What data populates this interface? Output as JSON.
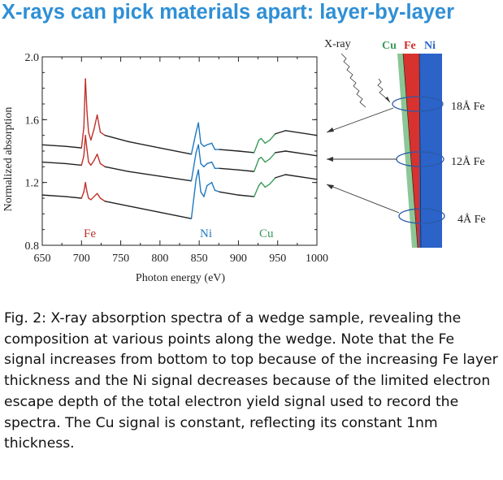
{
  "header": {
    "title": "X-rays can pick materials apart: layer-by-layer"
  },
  "chart_data": {
    "type": "line",
    "xlabel": "Photon energy (eV)",
    "ylabel": "Normalized absorption",
    "xlim": [
      650,
      1000
    ],
    "ylim": [
      0.8,
      2.0
    ],
    "xticks": [
      "650",
      "700",
      "750",
      "800",
      "850",
      "900",
      "950",
      "1000"
    ],
    "yticks": [
      "0.8",
      "1.2",
      "1.6",
      "2.0"
    ],
    "grid": false,
    "edge_labels": [
      {
        "text": "Fe",
        "color": "#c0302a"
      },
      {
        "text": "Ni",
        "color": "#1f78c0"
      },
      {
        "text": "Cu",
        "color": "#3a9a5a"
      }
    ],
    "region_colors": {
      "fe": "#c0302a",
      "ni": "#1f78c0",
      "cu": "#3a9a5a",
      "baseline": "#222222"
    },
    "series": [
      {
        "thickness": "18Å Fe",
        "x": [
          650,
          680,
          700,
          703,
          705,
          707,
          709,
          712,
          716,
          720,
          724,
          730,
          760,
          800,
          840,
          846,
          849,
          852,
          856,
          860,
          866,
          870,
          876,
          900,
          920,
          926,
          929,
          934,
          940,
          947,
          960,
          1000
        ],
        "y": [
          1.44,
          1.43,
          1.42,
          1.55,
          1.86,
          1.65,
          1.52,
          1.47,
          1.54,
          1.63,
          1.52,
          1.5,
          1.46,
          1.42,
          1.38,
          1.52,
          1.58,
          1.45,
          1.43,
          1.44,
          1.45,
          1.41,
          1.41,
          1.4,
          1.39,
          1.47,
          1.48,
          1.45,
          1.47,
          1.51,
          1.53,
          1.5
        ]
      },
      {
        "thickness": "12Å Fe",
        "x": [
          650,
          680,
          700,
          703,
          705,
          707,
          709,
          712,
          716,
          720,
          724,
          730,
          760,
          800,
          840,
          846,
          849,
          852,
          856,
          860,
          866,
          870,
          876,
          900,
          920,
          926,
          929,
          934,
          940,
          947,
          960,
          1000
        ],
        "y": [
          1.33,
          1.32,
          1.31,
          1.37,
          1.5,
          1.41,
          1.33,
          1.31,
          1.34,
          1.38,
          1.32,
          1.3,
          1.27,
          1.24,
          1.21,
          1.39,
          1.44,
          1.32,
          1.3,
          1.32,
          1.33,
          1.29,
          1.29,
          1.28,
          1.27,
          1.35,
          1.36,
          1.33,
          1.35,
          1.39,
          1.4,
          1.37
        ]
      },
      {
        "thickness": "4Å Fe",
        "x": [
          650,
          680,
          700,
          703,
          705,
          707,
          709,
          712,
          716,
          720,
          724,
          730,
          760,
          800,
          840,
          846,
          849,
          852,
          856,
          860,
          866,
          870,
          876,
          900,
          920,
          926,
          929,
          934,
          940,
          947,
          960,
          1000
        ],
        "y": [
          1.12,
          1.11,
          1.1,
          1.14,
          1.2,
          1.14,
          1.1,
          1.09,
          1.11,
          1.13,
          1.1,
          1.08,
          1.05,
          1.01,
          0.97,
          1.22,
          1.28,
          1.14,
          1.11,
          1.18,
          1.2,
          1.15,
          1.14,
          1.12,
          1.11,
          1.18,
          1.2,
          1.17,
          1.19,
          1.23,
          1.25,
          1.22
        ]
      }
    ]
  },
  "schematic": {
    "xray_label": "X-ray",
    "layers": [
      {
        "text": "Cu",
        "color": "#3a9a5a"
      },
      {
        "text": "Fe",
        "color": "#d02a28"
      },
      {
        "text": "Ni",
        "color": "#2a66c8"
      }
    ],
    "thickness_labels": [
      "18Å Fe",
      "12Å Fe",
      "4Å Fe"
    ],
    "wedge_colors": {
      "cu": "#8cc795",
      "fe": "#d8322e",
      "ni": "#2b63c8"
    }
  },
  "caption": "Fig. 2: X-ray absorption spectra of a wedge sample, revealing the composition at various points along the wedge. Note that the Fe signal increases from bottom to top because of the increasing Fe layer thickness and the Ni signal decreases because of the limited electron escape depth of the total electron yield signal used to record the spectra. The Cu signal is constant, reflecting its constant 1nm thickness."
}
